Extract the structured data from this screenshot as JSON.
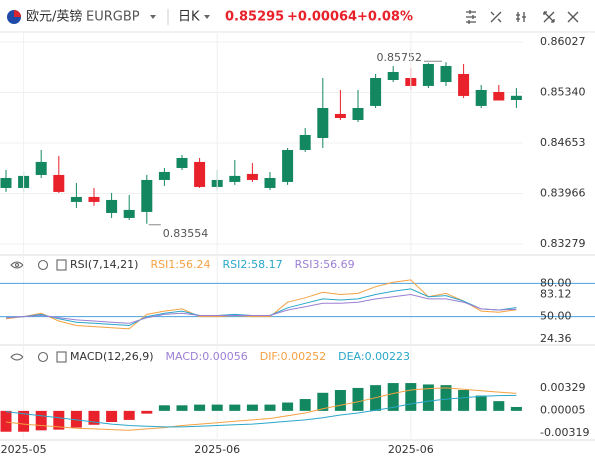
{
  "header": {
    "name": "欧元/英镑",
    "symbol": "EURGBP",
    "period": "日K",
    "price": "0.85295",
    "change": "+0.00064",
    "change_pct": "+0.08%"
  },
  "chart_data": [
    {
      "type": "candlestick",
      "categories": [
        null,
        "2025-05",
        null,
        null,
        null,
        null,
        null,
        null,
        null,
        null,
        null,
        null,
        "2025-06",
        null,
        null,
        null,
        null,
        null,
        null,
        null,
        null,
        null,
        null,
        "2025-06",
        null,
        null,
        null,
        null,
        null,
        null
      ],
      "open": [
        0.84041,
        0.84041,
        0.84218,
        0.84218,
        0.83851,
        0.83919,
        0.83701,
        0.83633,
        0.83715,
        0.8415,
        0.84313,
        0.84395,
        0.84055,
        0.84123,
        0.84232,
        0.84041,
        0.84123,
        0.84558,
        0.84721,
        0.85048,
        0.84966,
        0.85157,
        0.8551,
        0.85537,
        0.85429,
        0.85483,
        0.85592,
        0.85157,
        0.85347,
        0.85238
      ],
      "high": [
        0.84286,
        0.84259,
        0.84558,
        0.84477,
        0.84109,
        0.84041,
        0.83973,
        0.83946,
        0.84218,
        0.84313,
        0.8449,
        0.84449,
        0.84286,
        0.84422,
        0.84381,
        0.84259,
        0.84585,
        0.84857,
        0.85537,
        0.85374,
        0.85374,
        0.85592,
        0.857,
        0.85673,
        0.8574,
        0.85752,
        0.85728,
        0.85442,
        0.85442,
        0.85401
      ],
      "low": [
        0.83987,
        0.83987,
        0.84177,
        0.83973,
        0.83769,
        0.83797,
        0.83633,
        0.83606,
        0.83554,
        0.84069,
        0.84286,
        0.84041,
        0.84014,
        0.84082,
        0.84123,
        0.84014,
        0.84082,
        0.84531,
        0.84585,
        0.84966,
        0.84939,
        0.85129,
        0.85483,
        0.85374,
        0.85401,
        0.85429,
        0.85265,
        0.85129,
        0.85238,
        0.85129
      ],
      "close": [
        0.84177,
        0.84205,
        0.84395,
        0.83987,
        0.83919,
        0.83851,
        0.83878,
        0.83742,
        0.8415,
        0.84259,
        0.84449,
        0.84055,
        0.8415,
        0.84205,
        0.8415,
        0.84177,
        0.84558,
        0.84762,
        0.85129,
        0.84993,
        0.85129,
        0.85537,
        0.85619,
        0.85429,
        0.85728,
        0.85701,
        0.85293,
        0.85374,
        0.85231,
        0.85295
      ],
      "up_color": "#13875f",
      "down_color": "#e8212b",
      "high_label": 0.85752,
      "low_label": 0.83554,
      "ylim": [
        0.83129,
        0.86163
      ],
      "yticks": [
        0.83279,
        0.83966,
        0.84653,
        {
          "value": 0.8534,
          "label": "0.85340"
        },
        0.86027
      ],
      "grid": true
    },
    {
      "type": "line",
      "title": "RSI(7,14,21)",
      "series": [
        {
          "name": "RSI1:56.24",
          "color": "#f5a142",
          "values": [
            48,
            50,
            53,
            46,
            42,
            41,
            40,
            39,
            52,
            55,
            57,
            50,
            50,
            51,
            50,
            50,
            63,
            67,
            72,
            70,
            71,
            77,
            81,
            83.12,
            68,
            71,
            64,
            55,
            54,
            56.24
          ]
        },
        {
          "name": "RSI2:58.17",
          "color": "#2aa7c9",
          "values": [
            49,
            50,
            52,
            48,
            45,
            44,
            43,
            42,
            50,
            53,
            55,
            51,
            51,
            52,
            51,
            51,
            58,
            62,
            66,
            65,
            66,
            70,
            73,
            75,
            68,
            69,
            64,
            57,
            56,
            58.17
          ]
        },
        {
          "name": "RSI3:56.69",
          "color": "#9b7fd4",
          "values": [
            49,
            50,
            51,
            49,
            47,
            46,
            45,
            44,
            49,
            52,
            53,
            51,
            51,
            51,
            51,
            51,
            56,
            59,
            62,
            62,
            63,
            66,
            68,
            70,
            66,
            66,
            63,
            57,
            56,
            56.69
          ]
        }
      ],
      "ylim": [
        24.36,
        90.3
      ],
      "yticks": [
        {
          "value": 24.36,
          "label": "24.36"
        },
        {
          "value": 50,
          "label": "50.00",
          "line": true
        },
        {
          "value": 80,
          "label": "80.00",
          "line": true
        },
        83.12
      ]
    },
    {
      "type": "macd",
      "title": "MACD(12,26,9)",
      "series": [
        {
          "name": "MACD:0.00056",
          "color": "#9b7fd4",
          "up_color": "#13875f",
          "down_color": "#e8212b",
          "values": [
            -0.003,
            -0.003,
            -0.0028,
            -0.0027,
            -0.0024,
            -0.002,
            -0.0016,
            -0.0013,
            -0.0004,
            0.0008,
            0.0008,
            0.0009,
            0.0009,
            0.0009,
            0.0009,
            0.0009,
            0.0012,
            0.0017,
            0.0026,
            0.003,
            0.0033,
            0.0037,
            0.004,
            0.004,
            0.0038,
            0.0037,
            0.003,
            0.0022,
            0.0014,
            0.00056
          ]
        },
        {
          "name": "DIF:0.00252",
          "color": "#f5a142",
          "values": [
            -0.0016,
            -0.0019,
            -0.0021,
            -0.0023,
            -0.0025,
            -0.0026,
            -0.0027,
            -0.0028,
            -0.0026,
            -0.0024,
            -0.0021,
            -0.0019,
            -0.0017,
            -0.0015,
            -0.0013,
            -0.0011,
            -0.0007,
            -0.0003,
            0.0003,
            0.0008,
            0.0013,
            0.0019,
            0.0025,
            0.003,
            0.0032,
            0.0033,
            0.0031,
            0.0029,
            0.0027,
            0.00252
          ]
        },
        {
          "name": "DEA:0.00223",
          "color": "#2aa7c9",
          "values": [
            -0.0001,
            -0.0004,
            -0.0007,
            -0.001,
            -0.0013,
            -0.0016,
            -0.0019,
            -0.0021,
            -0.0022,
            -0.0023,
            -0.0023,
            -0.0022,
            -0.0021,
            -0.002,
            -0.0019,
            -0.0017,
            -0.0015,
            -0.0013,
            -0.001,
            -0.0006,
            -0.0003,
            0.0001,
            0.0005,
            0.001,
            0.0014,
            0.0017,
            0.0019,
            0.0021,
            0.0022,
            0.00223
          ]
        }
      ],
      "ylim": [
        -0.00419,
        0.00703
      ],
      "yticks": [
        -0.00319,
        5e-05,
        0.00329
      ]
    }
  ]
}
